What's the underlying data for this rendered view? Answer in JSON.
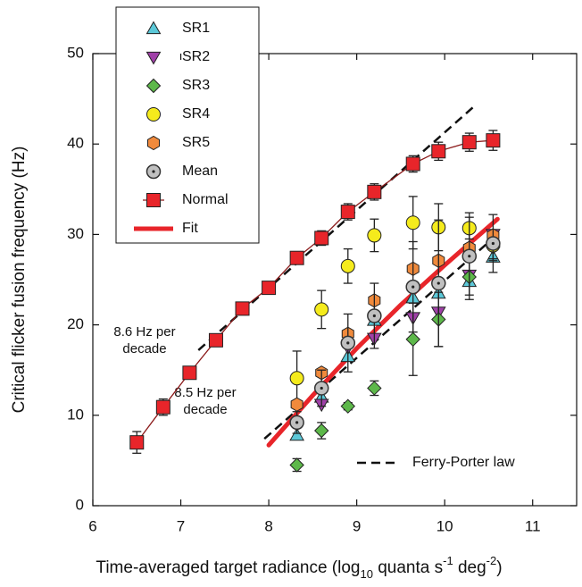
{
  "chart_data": {
    "type": "line",
    "ylabel": "Critical flicker fusion frequency (Hz)",
    "xlabel": [
      "Time-averaged target radiance (log",
      "10",
      " quanta s",
      "-1",
      " deg",
      "-2",
      ")"
    ],
    "xlim": [
      6,
      11.5
    ],
    "ylim": [
      0,
      50
    ],
    "xticks": [
      6,
      7,
      8,
      9,
      10,
      11
    ],
    "yticks": [
      0,
      10,
      20,
      30,
      40,
      50
    ],
    "series": [
      {
        "name": "SR1",
        "color": "#5bc8d8",
        "marker": "triangle-up",
        "x": [
          8.32,
          8.6,
          8.9,
          9.2,
          9.64,
          9.93,
          10.28,
          10.55
        ],
        "values": [
          7.8,
          12.0,
          16.5,
          20.5,
          23.0,
          23.5,
          24.8,
          27.5
        ]
      },
      {
        "name": "SR2",
        "color": "#a040a8",
        "marker": "triangle-down",
        "x": [
          8.6,
          8.9,
          9.2,
          9.64,
          9.93,
          10.28,
          10.55
        ],
        "values": [
          11.2,
          17.5,
          18.5,
          20.8,
          21.4,
          25.5,
          30.0
        ]
      },
      {
        "name": "SR3",
        "color": "#5db84a",
        "marker": "diamond",
        "x": [
          8.32,
          8.6,
          8.9,
          9.2,
          9.64,
          9.93,
          10.28,
          10.55
        ],
        "values": [
          4.5,
          8.3,
          11.0,
          13.0,
          18.4,
          20.6,
          25.3,
          28.6
        ],
        "errors": [
          0.7,
          0.9,
          0.4,
          0.8,
          4.0,
          3.0,
          2.0,
          1.5
        ]
      },
      {
        "name": "SR4",
        "color": "#f5eb1c",
        "marker": "circle",
        "x": [
          8.32,
          8.6,
          8.9,
          9.2,
          9.64,
          9.93,
          10.28,
          10.55
        ],
        "values": [
          14.1,
          21.7,
          26.5,
          29.9,
          31.3,
          30.8,
          30.7,
          28.8
        ],
        "errors": [
          3.0,
          2.1,
          1.9,
          1.8,
          2.9,
          2.6,
          1.2,
          1.5
        ]
      },
      {
        "name": "SR5",
        "color": "#f08a3c",
        "marker": "hexagon",
        "x": [
          8.32,
          8.6,
          8.9,
          9.2,
          9.64,
          9.93,
          10.28,
          10.55
        ],
        "values": [
          11.2,
          14.7,
          19.0,
          22.7,
          26.2,
          27.1,
          28.5,
          29.9
        ]
      },
      {
        "name": "Mean",
        "color": "#c0c0c0",
        "marker": "dot-circle",
        "x": [
          8.32,
          8.6,
          8.9,
          9.2,
          9.64,
          9.93,
          10.28,
          10.55
        ],
        "values": [
          9.2,
          13.0,
          18.0,
          21.0,
          24.2,
          24.6,
          27.6,
          29.0
        ],
        "errors": [
          1.2,
          2.0,
          3.2,
          3.6,
          5.0,
          7.0,
          4.8,
          3.2
        ]
      },
      {
        "name": "Normal",
        "color": "#e8252a",
        "marker": "square",
        "line_color": "#8b1a1a",
        "x": [
          6.5,
          6.8,
          7.1,
          7.4,
          7.7,
          8.0,
          8.32,
          8.6,
          8.9,
          9.2,
          9.64,
          9.93,
          10.28,
          10.55
        ],
        "values": [
          7.0,
          10.9,
          14.7,
          18.3,
          21.8,
          24.1,
          27.4,
          29.6,
          32.5,
          34.7,
          37.8,
          39.2,
          40.2,
          40.4
        ],
        "errors": [
          1.2,
          0.9,
          0.6,
          0.7,
          0.7,
          0.6,
          0.7,
          0.8,
          0.9,
          0.9,
          0.9,
          1.0,
          1.0,
          1.1
        ]
      },
      {
        "name": "Fit",
        "color": "#e8252a",
        "marker": "none",
        "x": [
          8.0,
          8.5,
          9.0,
          9.5,
          10.0,
          10.6
        ],
        "values": [
          6.7,
          12.2,
          17.4,
          22.2,
          26.6,
          31.7
        ]
      }
    ],
    "reference_name": "Ferry-Porter law",
    "reference_lines": [
      {
        "label": [
          "8.6 Hz per",
          "decade"
        ],
        "x": [
          7.2,
          10.35
        ],
        "values": [
          17.2,
          44.3
        ]
      },
      {
        "label": [
          "8.5 Hz per",
          "decade"
        ],
        "x": [
          7.95,
          10.6
        ],
        "values": [
          7.4,
          30.0
        ]
      }
    ]
  }
}
